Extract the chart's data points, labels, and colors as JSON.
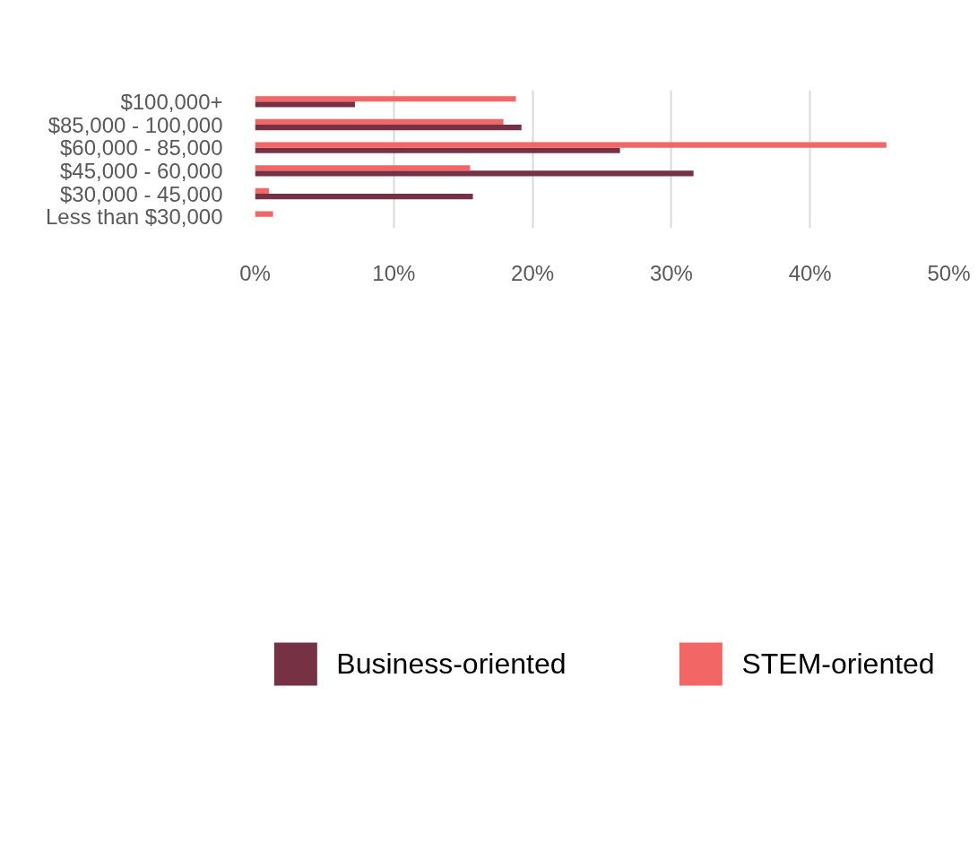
{
  "chart_data": {
    "type": "bar",
    "orientation": "horizontal",
    "categories": [
      "$100,000+",
      "$85,000 - 100,000",
      "$60,000 - 85,000",
      "$45,000 - 60,000",
      "$30,000 - 45,000",
      "Less than $30,000"
    ],
    "series": [
      {
        "name": "Business-oriented",
        "color": "#763244",
        "values": [
          7.2,
          19.2,
          26.3,
          31.6,
          15.7,
          0
        ]
      },
      {
        "name": "STEM-oriented",
        "color": "#f26666",
        "values": [
          18.8,
          17.9,
          45.5,
          15.5,
          1.0,
          1.3
        ]
      }
    ],
    "xlim": [
      0,
      50
    ],
    "xticks": [
      {
        "value": 0,
        "label": "0%"
      },
      {
        "value": 10,
        "label": "10%"
      },
      {
        "value": 20,
        "label": "20%"
      },
      {
        "value": 30,
        "label": "30%"
      },
      {
        "value": 40,
        "label": "40%"
      },
      {
        "value": 50,
        "label": "50%"
      }
    ],
    "grid": "x",
    "legend": "bottom"
  }
}
